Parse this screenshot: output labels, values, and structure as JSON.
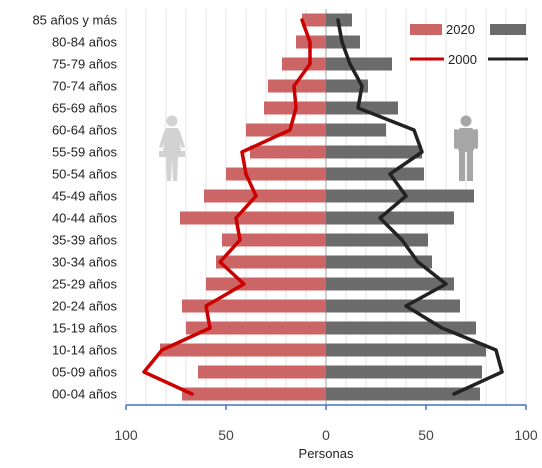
{
  "chart_data": {
    "type": "bar",
    "orientation": "horizontal",
    "layout": "population-pyramid",
    "categories": [
      "85 años y más",
      "80-84 años",
      "75-79 años",
      "70-74 años",
      "65-69 años",
      "60-64 años",
      "55-59 años",
      "50-54 años",
      "45-49 años",
      "40-44 años",
      "35-39 años",
      "30-34 años",
      "25-29 años",
      "20-24 años",
      "15-19 años",
      "10-14 años",
      "05-09 años",
      "00-04 años"
    ],
    "series": [
      {
        "name": "2020",
        "kind": "bar",
        "side": "women",
        "color": "#cc6666",
        "values": [
          12,
          15,
          22,
          29,
          31,
          40,
          38,
          50,
          61,
          73,
          52,
          55,
          60,
          72,
          70,
          83,
          64,
          72
        ]
      },
      {
        "name": "2020",
        "kind": "bar",
        "side": "men",
        "color": "#6b6b6b",
        "values": [
          13,
          17,
          33,
          21,
          36,
          30,
          48,
          49,
          74,
          64,
          51,
          53,
          64,
          67,
          75,
          80,
          78,
          77
        ]
      },
      {
        "name": "2000",
        "kind": "line",
        "side": "women",
        "color": "#cc0000",
        "values": [
          12,
          8,
          8,
          16,
          15,
          18,
          42,
          40,
          35,
          45,
          43,
          53,
          41,
          60,
          58,
          82,
          91,
          67
        ]
      },
      {
        "name": "2000",
        "kind": "line",
        "side": "men",
        "color": "#222222",
        "values": [
          6,
          8,
          12,
          18,
          16,
          44,
          48,
          32,
          40,
          27,
          38,
          46,
          60,
          40,
          58,
          85,
          88,
          64
        ]
      }
    ],
    "xlabel": "Personas",
    "xlim": [
      -100,
      100
    ],
    "xticks": [
      -100,
      -50,
      0,
      50,
      100
    ],
    "xtick_labels": [
      "100",
      "50",
      "0",
      "50",
      "100"
    ],
    "grid": "vertical",
    "legend": "top-right"
  },
  "icons": {
    "women": "woman-icon",
    "men": "man-icon"
  }
}
